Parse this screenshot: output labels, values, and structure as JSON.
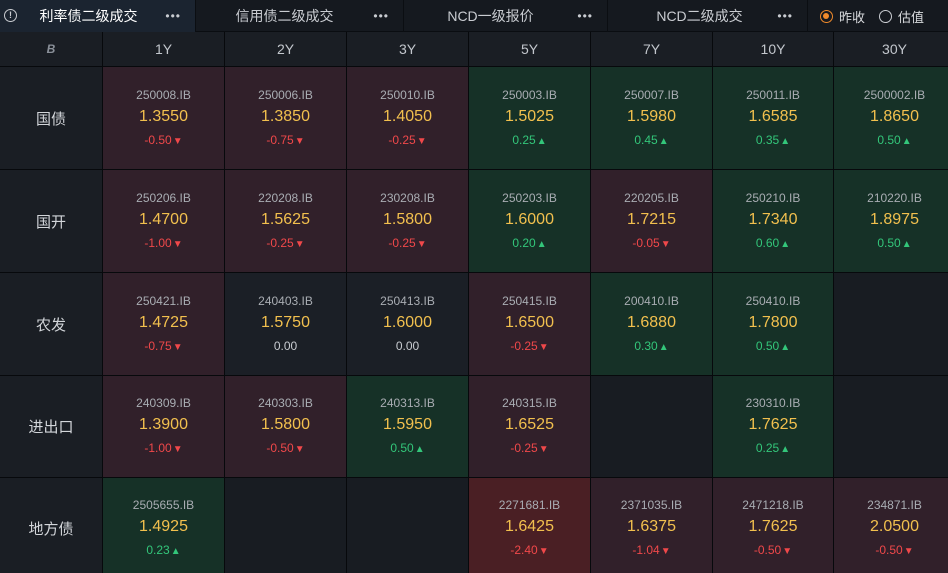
{
  "tabs": [
    {
      "label": "利率债二级成交",
      "active": true
    },
    {
      "label": "信用债二级成交",
      "active": false
    },
    {
      "label": "NCD一级报价",
      "active": false
    },
    {
      "label": "NCD二级成交",
      "active": false
    }
  ],
  "tab_menu_glyph": "•••",
  "info_glyph": "!",
  "corner_logo": "B",
  "radio_options": [
    {
      "label": "昨收",
      "selected": true
    },
    {
      "label": "估值",
      "selected": false
    }
  ],
  "columns": [
    "1Y",
    "2Y",
    "3Y",
    "5Y",
    "7Y",
    "10Y",
    "30Y"
  ],
  "rows": [
    {
      "label": "国债",
      "cells": [
        {
          "code": "250008.IB",
          "price": "1.3550",
          "change": "-0.50",
          "dir": "down",
          "tone": "red"
        },
        {
          "code": "250006.IB",
          "price": "1.3850",
          "change": "-0.75",
          "dir": "down",
          "tone": "red"
        },
        {
          "code": "250010.IB",
          "price": "1.4050",
          "change": "-0.25",
          "dir": "down",
          "tone": "red"
        },
        {
          "code": "250003.IB",
          "price": "1.5025",
          "change": "0.25",
          "dir": "up",
          "tone": "green"
        },
        {
          "code": "250007.IB",
          "price": "1.5980",
          "change": "0.45",
          "dir": "up",
          "tone": "green"
        },
        {
          "code": "250011.IB",
          "price": "1.6585",
          "change": "0.35",
          "dir": "up",
          "tone": "green"
        },
        {
          "code": "2500002.IB",
          "price": "1.8650",
          "change": "0.50",
          "dir": "up",
          "tone": "green"
        }
      ]
    },
    {
      "label": "国开",
      "cells": [
        {
          "code": "250206.IB",
          "price": "1.4700",
          "change": "-1.00",
          "dir": "down",
          "tone": "red"
        },
        {
          "code": "220208.IB",
          "price": "1.5625",
          "change": "-0.25",
          "dir": "down",
          "tone": "red"
        },
        {
          "code": "230208.IB",
          "price": "1.5800",
          "change": "-0.25",
          "dir": "down",
          "tone": "red"
        },
        {
          "code": "250203.IB",
          "price": "1.6000",
          "change": "0.20",
          "dir": "up",
          "tone": "green"
        },
        {
          "code": "220205.IB",
          "price": "1.7215",
          "change": "-0.05",
          "dir": "down",
          "tone": "red"
        },
        {
          "code": "250210.IB",
          "price": "1.7340",
          "change": "0.60",
          "dir": "up",
          "tone": "green"
        },
        {
          "code": "210220.IB",
          "price": "1.8975",
          "change": "0.50",
          "dir": "up",
          "tone": "green"
        }
      ]
    },
    {
      "label": "农发",
      "cells": [
        {
          "code": "250421.IB",
          "price": "1.4725",
          "change": "-0.75",
          "dir": "down",
          "tone": "red"
        },
        {
          "code": "240403.IB",
          "price": "1.5750",
          "change": "0.00",
          "dir": "zero",
          "tone": "flat"
        },
        {
          "code": "250413.IB",
          "price": "1.6000",
          "change": "0.00",
          "dir": "zero",
          "tone": "flat"
        },
        {
          "code": "250415.IB",
          "price": "1.6500",
          "change": "-0.25",
          "dir": "down",
          "tone": "red"
        },
        {
          "code": "200410.IB",
          "price": "1.6880",
          "change": "0.30",
          "dir": "up",
          "tone": "green"
        },
        {
          "code": "250410.IB",
          "price": "1.7800",
          "change": "0.50",
          "dir": "up",
          "tone": "green"
        },
        null
      ]
    },
    {
      "label": "进出口",
      "cells": [
        {
          "code": "240309.IB",
          "price": "1.3900",
          "change": "-1.00",
          "dir": "down",
          "tone": "red"
        },
        {
          "code": "240303.IB",
          "price": "1.5800",
          "change": "-0.50",
          "dir": "down",
          "tone": "red"
        },
        {
          "code": "240313.IB",
          "price": "1.5950",
          "change": "0.50",
          "dir": "up",
          "tone": "green"
        },
        {
          "code": "240315.IB",
          "price": "1.6525",
          "change": "-0.25",
          "dir": "down",
          "tone": "red"
        },
        null,
        {
          "code": "230310.IB",
          "price": "1.7625",
          "change": "0.25",
          "dir": "up",
          "tone": "green"
        },
        null
      ]
    },
    {
      "label": "地方债",
      "cells": [
        {
          "code": "2505655.IB",
          "price": "1.4925",
          "change": "0.23",
          "dir": "up",
          "tone": "green"
        },
        null,
        null,
        {
          "code": "2271681.IB",
          "price": "1.6425",
          "change": "-2.40",
          "dir": "down",
          "tone": "red2"
        },
        {
          "code": "2371035.IB",
          "price": "1.6375",
          "change": "-1.04",
          "dir": "down",
          "tone": "red"
        },
        {
          "code": "2471218.IB",
          "price": "1.7625",
          "change": "-0.50",
          "dir": "down",
          "tone": "red"
        },
        {
          "code": "234871.IB",
          "price": "2.0500",
          "change": "-0.50",
          "dir": "down",
          "tone": "red"
        }
      ]
    }
  ],
  "colors": {
    "up": "#33c67a",
    "down": "#f0484a",
    "price": "#f2c04e",
    "accent": "#f08a2b"
  }
}
